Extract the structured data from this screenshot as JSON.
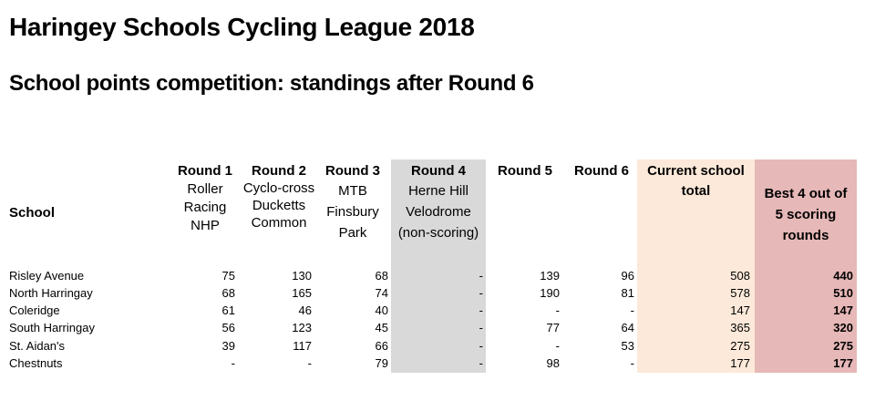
{
  "title": "Haringey Schools Cycling League 2018",
  "subtitle": "School points competition: standings after Round 6",
  "table": {
    "school_header": "School",
    "rounds": [
      {
        "label": "Round 1",
        "desc": [
          "Roller",
          "Racing NHP"
        ]
      },
      {
        "label": "Round 2",
        "desc": [
          "Cyclo-cross",
          "Ducketts",
          "Common"
        ]
      },
      {
        "label": "Round 3",
        "desc": [
          "MTB",
          "Finsbury",
          "Park"
        ]
      },
      {
        "label": "Round 4",
        "desc": [
          "Herne Hill",
          "Velodrome",
          "(non-scoring)"
        ]
      },
      {
        "label": "Round 5",
        "desc": []
      },
      {
        "label": "Round 6",
        "desc": []
      }
    ],
    "current_total_header": [
      "Current school",
      "total"
    ],
    "best_header": [
      "Best 4 out of",
      "5 scoring",
      "rounds"
    ],
    "rows": [
      {
        "school": "Risley Avenue",
        "r1": "75",
        "r2": "130",
        "r3": "68",
        "r4": "-",
        "r5": "139",
        "r6": "96",
        "total": "508",
        "best": "440"
      },
      {
        "school": "North Harringay",
        "r1": "68",
        "r2": "165",
        "r3": "74",
        "r4": "-",
        "r5": "190",
        "r6": "81",
        "total": "578",
        "best": "510"
      },
      {
        "school": "Coleridge",
        "r1": "61",
        "r2": "46",
        "r3": "40",
        "r4": "-",
        "r5": "-",
        "r6": "-",
        "total": "147",
        "best": "147"
      },
      {
        "school": "South Harringay",
        "r1": "56",
        "r2": "123",
        "r3": "45",
        "r4": "-",
        "r5": "77",
        "r6": "64",
        "total": "365",
        "best": "320"
      },
      {
        "school": "St. Aidan's",
        "r1": "39",
        "r2": "117",
        "r3": "66",
        "r4": "-",
        "r5": "-",
        "r6": "53",
        "total": "275",
        "best": "275"
      },
      {
        "school": "Chestnuts",
        "r1": "-",
        "r2": "-",
        "r3": "79",
        "r4": "-",
        "r5": "98",
        "r6": "-",
        "total": "177",
        "best": "177"
      }
    ]
  }
}
